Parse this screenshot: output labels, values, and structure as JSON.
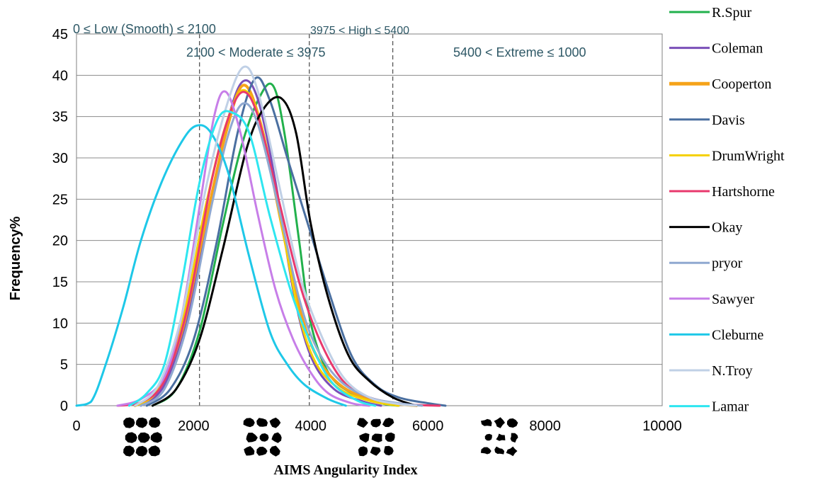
{
  "chart_data": {
    "type": "line",
    "xlabel": "AIMS Angularity Index",
    "ylabel": "Frequency%",
    "xlim": [
      0,
      10000
    ],
    "ylim": [
      0,
      45
    ],
    "x_ticks": [
      "0",
      "2000",
      "4000",
      "6000",
      "8000",
      "10000"
    ],
    "y_ticks": [
      "0",
      "5",
      "10",
      "15",
      "20",
      "25",
      "30",
      "35",
      "40",
      "45"
    ],
    "grid": "horizontal",
    "legend_position": "right",
    "thresholds": [
      2100,
      3975,
      5400
    ],
    "annotations": [
      {
        "text": "0 ≤ Low (Smooth) ≤ 2100"
      },
      {
        "text": "2100 < Moderate ≤ 3975"
      },
      {
        "text": "3975 < High ≤ 5400"
      },
      {
        "text": "5400 < Extreme ≤ 1000"
      }
    ],
    "series": [
      {
        "name": "R.Spur",
        "color": "#22b14c",
        "points": [
          [
            1300,
            0
          ],
          [
            1700,
            2
          ],
          [
            2100,
            9
          ],
          [
            2500,
            22
          ],
          [
            2800,
            31
          ],
          [
            3100,
            37
          ],
          [
            3350,
            38.8
          ],
          [
            3550,
            33
          ],
          [
            3800,
            20
          ],
          [
            4000,
            10
          ],
          [
            4300,
            4
          ],
          [
            4700,
            1.5
          ],
          [
            5200,
            0.3
          ],
          [
            5500,
            0
          ]
        ]
      },
      {
        "name": "Coleman",
        "color": "#7a4fb8",
        "points": [
          [
            1100,
            0
          ],
          [
            1500,
            2.5
          ],
          [
            1900,
            11
          ],
          [
            2300,
            25
          ],
          [
            2600,
            35
          ],
          [
            2850,
            39.3
          ],
          [
            3100,
            37
          ],
          [
            3400,
            27
          ],
          [
            3700,
            14
          ],
          [
            4000,
            6
          ],
          [
            4400,
            2
          ],
          [
            4900,
            0.5
          ],
          [
            5200,
            0
          ]
        ]
      },
      {
        "name": "Cooperton",
        "color": "#f5a31a",
        "points": [
          [
            1000,
            0
          ],
          [
            1400,
            2
          ],
          [
            1800,
            9
          ],
          [
            2200,
            22
          ],
          [
            2550,
            33
          ],
          [
            2850,
            38.8
          ],
          [
            3150,
            34
          ],
          [
            3500,
            22
          ],
          [
            3800,
            12
          ],
          [
            4100,
            6
          ],
          [
            4500,
            2.5
          ],
          [
            5000,
            0.8
          ],
          [
            5500,
            0.2
          ],
          [
            5800,
            0
          ]
        ]
      },
      {
        "name": "Davis",
        "color": "#4a6fa0",
        "points": [
          [
            1200,
            0
          ],
          [
            1600,
            2
          ],
          [
            2000,
            8
          ],
          [
            2400,
            20
          ],
          [
            2750,
            33
          ],
          [
            3050,
            39.6
          ],
          [
            3300,
            37
          ],
          [
            3600,
            30
          ],
          [
            3950,
            22
          ],
          [
            4300,
            14
          ],
          [
            4700,
            6
          ],
          [
            5100,
            2.5
          ],
          [
            5500,
            1
          ],
          [
            6000,
            0.3
          ],
          [
            6300,
            0
          ]
        ]
      },
      {
        "name": "DrumWright",
        "color": "#f5d000",
        "points": [
          [
            1000,
            0
          ],
          [
            1400,
            2
          ],
          [
            1800,
            10
          ],
          [
            2200,
            24
          ],
          [
            2550,
            34
          ],
          [
            2850,
            38.2
          ],
          [
            3150,
            34
          ],
          [
            3500,
            22
          ],
          [
            3800,
            11
          ],
          [
            4100,
            5
          ],
          [
            4500,
            2
          ],
          [
            5000,
            0.6
          ],
          [
            5500,
            0
          ]
        ]
      },
      {
        "name": "Hartshorne",
        "color": "#e8386d",
        "points": [
          [
            700,
            0
          ],
          [
            1100,
            0.4
          ],
          [
            1500,
            3
          ],
          [
            1900,
            12
          ],
          [
            2300,
            27
          ],
          [
            2600,
            35
          ],
          [
            2850,
            38
          ],
          [
            3100,
            35
          ],
          [
            3450,
            25
          ],
          [
            3800,
            15
          ],
          [
            4150,
            8
          ],
          [
            4550,
            3
          ],
          [
            5000,
            1
          ],
          [
            5600,
            0.2
          ],
          [
            6200,
            0
          ]
        ]
      },
      {
        "name": "Okay",
        "color": "#000000",
        "points": [
          [
            1300,
            0
          ],
          [
            1700,
            2
          ],
          [
            2100,
            8
          ],
          [
            2500,
            19
          ],
          [
            2900,
            31
          ],
          [
            3200,
            36
          ],
          [
            3500,
            37.2
          ],
          [
            3750,
            33
          ],
          [
            4000,
            22
          ],
          [
            4300,
            13
          ],
          [
            4650,
            6
          ],
          [
            5000,
            3
          ],
          [
            5400,
            1
          ],
          [
            5800,
            0
          ]
        ]
      },
      {
        "name": "pryor",
        "color": "#8fa8d0",
        "points": [
          [
            1100,
            0
          ],
          [
            1500,
            2
          ],
          [
            1900,
            10
          ],
          [
            2300,
            24
          ],
          [
            2600,
            33
          ],
          [
            2850,
            36.6
          ],
          [
            3100,
            34
          ],
          [
            3450,
            24
          ],
          [
            3800,
            13
          ],
          [
            4100,
            7
          ],
          [
            4500,
            3
          ],
          [
            5000,
            1
          ],
          [
            5500,
            0.3
          ],
          [
            5900,
            0
          ]
        ]
      },
      {
        "name": "Sawyer",
        "color": "#c77ee8",
        "points": [
          [
            700,
            0
          ],
          [
            1100,
            0.8
          ],
          [
            1500,
            3.5
          ],
          [
            1800,
            11
          ],
          [
            2100,
            24
          ],
          [
            2350,
            35
          ],
          [
            2550,
            38
          ],
          [
            2800,
            33
          ],
          [
            3100,
            23
          ],
          [
            3400,
            14
          ],
          [
            3700,
            8
          ],
          [
            4000,
            4
          ],
          [
            4300,
            1.5
          ],
          [
            4700,
            0.3
          ],
          [
            5000,
            0
          ]
        ]
      },
      {
        "name": "Cleburne",
        "color": "#1ec8e8",
        "points": [
          [
            0,
            0
          ],
          [
            250,
            0.5
          ],
          [
            500,
            5
          ],
          [
            800,
            12
          ],
          [
            1100,
            20
          ],
          [
            1450,
            27
          ],
          [
            1800,
            32
          ],
          [
            2050,
            33.9
          ],
          [
            2300,
            33
          ],
          [
            2600,
            28
          ],
          [
            2950,
            18
          ],
          [
            3300,
            9
          ],
          [
            3600,
            5
          ],
          [
            3900,
            2.5
          ],
          [
            4300,
            0.8
          ],
          [
            4600,
            0
          ]
        ]
      },
      {
        "name": "N.Troy",
        "color": "#c0d0e6",
        "points": [
          [
            1000,
            0
          ],
          [
            1400,
            2.5
          ],
          [
            1800,
            11
          ],
          [
            2200,
            26
          ],
          [
            2550,
            36
          ],
          [
            2850,
            41
          ],
          [
            3100,
            38
          ],
          [
            3450,
            27
          ],
          [
            3800,
            16
          ],
          [
            4150,
            9
          ],
          [
            4550,
            3.5
          ],
          [
            5000,
            1
          ],
          [
            5500,
            0.2
          ],
          [
            5800,
            0
          ]
        ]
      },
      {
        "name": "Lamar",
        "color": "#2ee6f0",
        "points": [
          [
            900,
            0
          ],
          [
            1200,
            1.5
          ],
          [
            1500,
            5
          ],
          [
            1800,
            15
          ],
          [
            2100,
            27
          ],
          [
            2400,
            34.5
          ],
          [
            2650,
            35.5
          ],
          [
            2950,
            33
          ],
          [
            3300,
            23
          ],
          [
            3700,
            13
          ],
          [
            4100,
            6
          ],
          [
            4400,
            2.5
          ],
          [
            4800,
            0.6
          ],
          [
            5100,
            0
          ]
        ]
      }
    ]
  }
}
